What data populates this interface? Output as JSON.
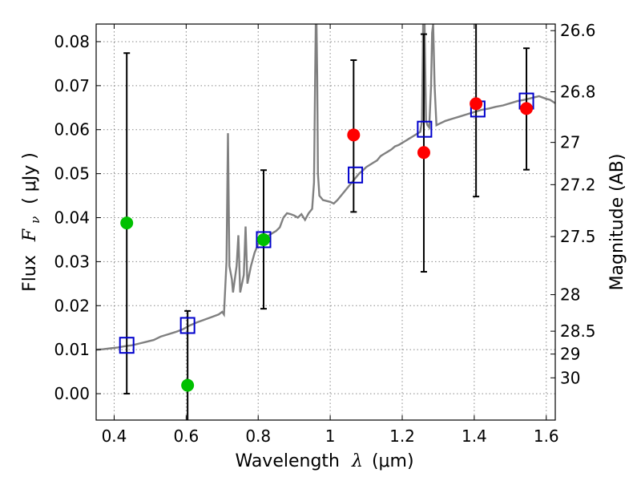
{
  "chart_data": {
    "type": "scatter",
    "xlabel": {
      "prefix": "Wavelength",
      "symbol": "λ",
      "unit": "(μm)"
    },
    "ylabel": {
      "prefix": "Flux",
      "symbol": "F",
      "subscript": "ν",
      "unit": "( μJy )"
    },
    "ylabel_right": "Magnitude (AB)",
    "xlim": [
      0.35,
      1.625
    ],
    "ylim": [
      -0.006,
      0.084
    ],
    "grid": true,
    "x_ticks": [
      0.4,
      0.6,
      0.8,
      1.0,
      1.2,
      1.4,
      1.6
    ],
    "x_tick_labels": [
      "0.4",
      "0.6",
      "0.8",
      "1",
      "1.2",
      "1.4",
      "1.6"
    ],
    "y_ticks": [
      0.0,
      0.01,
      0.02,
      0.03,
      0.04,
      0.05,
      0.06,
      0.07,
      0.08
    ],
    "y_tick_labels": [
      "0.00",
      "0.01",
      "0.02",
      "0.03",
      "0.04",
      "0.05",
      "0.06",
      "0.07",
      "0.08"
    ],
    "right_ticks": [
      {
        "label": "26.6",
        "flux": 0.0825
      },
      {
        "label": "26.8",
        "flux": 0.0686
      },
      {
        "label": "27",
        "flux": 0.0571
      },
      {
        "label": "27.2",
        "flux": 0.0475
      },
      {
        "label": "27.5",
        "flux": 0.0357
      },
      {
        "label": "28",
        "flux": 0.0225
      },
      {
        "label": "28.5",
        "flux": 0.0142
      },
      {
        "label": "29",
        "flux": 0.009
      },
      {
        "label": "30",
        "flux": 0.0036
      }
    ],
    "colors": {
      "template": "#808080",
      "model_box": "#0000cc",
      "measured": "#ff0000",
      "upper_limit": "#00c000",
      "errorbar": "#000000",
      "grid": "#888888"
    },
    "series": [
      {
        "marker": "square",
        "points": [
          {
            "x": 0.435,
            "y": 0.011
          },
          {
            "x": 0.604,
            "y": 0.0155
          },
          {
            "x": 0.815,
            "y": 0.035
          },
          {
            "x": 1.07,
            "y": 0.0497
          },
          {
            "x": 1.262,
            "y": 0.0601
          },
          {
            "x": 1.41,
            "y": 0.0647
          },
          {
            "x": 1.545,
            "y": 0.0665
          }
        ]
      },
      {
        "marker": "circle",
        "points": [
          {
            "x": 1.065,
            "y": 0.0588
          },
          {
            "x": 1.26,
            "y": 0.0548
          },
          {
            "x": 1.405,
            "y": 0.0659
          },
          {
            "x": 1.545,
            "y": 0.0648
          }
        ]
      },
      {
        "marker": "circle",
        "points": [
          {
            "x": 0.435,
            "y": 0.0388
          },
          {
            "x": 0.604,
            "y": 0.0019
          },
          {
            "x": 0.815,
            "y": 0.035
          }
        ]
      }
    ],
    "errorbars": [
      {
        "x": 0.435,
        "low": 0.0,
        "high": 0.0774
      },
      {
        "x": 0.604,
        "low": -0.0065,
        "high": 0.0188
      },
      {
        "x": 0.815,
        "low": 0.0193,
        "high": 0.0508
      },
      {
        "x": 1.065,
        "low": 0.0413,
        "high": 0.0758
      },
      {
        "x": 1.26,
        "low": 0.0277,
        "high": 0.0817
      },
      {
        "x": 1.405,
        "low": 0.0448,
        "high": 0.0872
      },
      {
        "x": 1.545,
        "low": 0.0509,
        "high": 0.0785
      }
    ],
    "template_spectrum": [
      [
        0.35,
        0.01
      ],
      [
        0.37,
        0.0101
      ],
      [
        0.39,
        0.0103
      ],
      [
        0.41,
        0.0105
      ],
      [
        0.43,
        0.0108
      ],
      [
        0.45,
        0.011
      ],
      [
        0.47,
        0.0114
      ],
      [
        0.49,
        0.0118
      ],
      [
        0.51,
        0.0122
      ],
      [
        0.53,
        0.013
      ],
      [
        0.55,
        0.0135
      ],
      [
        0.57,
        0.014
      ],
      [
        0.59,
        0.0146
      ],
      [
        0.61,
        0.0155
      ],
      [
        0.63,
        0.0162
      ],
      [
        0.65,
        0.0168
      ],
      [
        0.67,
        0.0174
      ],
      [
        0.69,
        0.018
      ],
      [
        0.7,
        0.0186
      ],
      [
        0.705,
        0.018
      ],
      [
        0.712,
        0.03
      ],
      [
        0.716,
        0.0592
      ],
      [
        0.72,
        0.029
      ],
      [
        0.727,
        0.026
      ],
      [
        0.73,
        0.023
      ],
      [
        0.74,
        0.029
      ],
      [
        0.745,
        0.036
      ],
      [
        0.75,
        0.023
      ],
      [
        0.76,
        0.027
      ],
      [
        0.765,
        0.038
      ],
      [
        0.77,
        0.025
      ],
      [
        0.78,
        0.029
      ],
      [
        0.79,
        0.032
      ],
      [
        0.8,
        0.034
      ],
      [
        0.81,
        0.035
      ],
      [
        0.82,
        0.0355
      ],
      [
        0.83,
        0.036
      ],
      [
        0.84,
        0.0365
      ],
      [
        0.85,
        0.037
      ],
      [
        0.86,
        0.0378
      ],
      [
        0.87,
        0.04
      ],
      [
        0.88,
        0.041
      ],
      [
        0.89,
        0.0408
      ],
      [
        0.9,
        0.0405
      ],
      [
        0.91,
        0.04
      ],
      [
        0.92,
        0.0408
      ],
      [
        0.93,
        0.0395
      ],
      [
        0.94,
        0.041
      ],
      [
        0.95,
        0.042
      ],
      [
        0.955,
        0.048
      ],
      [
        0.958,
        0.07
      ],
      [
        0.96,
        0.084
      ],
      [
        0.962,
        0.084
      ],
      [
        0.964,
        0.072
      ],
      [
        0.966,
        0.05
      ],
      [
        0.97,
        0.045
      ],
      [
        0.98,
        0.044
      ],
      [
        0.99,
        0.0438
      ],
      [
        1.0,
        0.0436
      ],
      [
        1.01,
        0.0432
      ],
      [
        1.02,
        0.044
      ],
      [
        1.03,
        0.045
      ],
      [
        1.04,
        0.046
      ],
      [
        1.05,
        0.047
      ],
      [
        1.06,
        0.048
      ],
      [
        1.07,
        0.049
      ],
      [
        1.08,
        0.05
      ],
      [
        1.09,
        0.0507
      ],
      [
        1.1,
        0.0515
      ],
      [
        1.11,
        0.052
      ],
      [
        1.12,
        0.0525
      ],
      [
        1.13,
        0.053
      ],
      [
        1.14,
        0.054
      ],
      [
        1.15,
        0.0545
      ],
      [
        1.16,
        0.055
      ],
      [
        1.17,
        0.0555
      ],
      [
        1.18,
        0.0562
      ],
      [
        1.19,
        0.0565
      ],
      [
        1.2,
        0.057
      ],
      [
        1.21,
        0.0575
      ],
      [
        1.22,
        0.058
      ],
      [
        1.23,
        0.0585
      ],
      [
        1.24,
        0.059
      ],
      [
        1.25,
        0.0595
      ],
      [
        1.255,
        0.062
      ],
      [
        1.258,
        0.084
      ],
      [
        1.262,
        0.084
      ],
      [
        1.266,
        0.062
      ],
      [
        1.27,
        0.061
      ],
      [
        1.275,
        0.0605
      ],
      [
        1.28,
        0.07
      ],
      [
        1.283,
        0.082
      ],
      [
        1.286,
        0.084
      ],
      [
        1.29,
        0.07
      ],
      [
        1.295,
        0.061
      ],
      [
        1.3,
        0.0612
      ],
      [
        1.32,
        0.062
      ],
      [
        1.34,
        0.0625
      ],
      [
        1.36,
        0.063
      ],
      [
        1.38,
        0.0635
      ],
      [
        1.4,
        0.064
      ],
      [
        1.42,
        0.0645
      ],
      [
        1.44,
        0.0648
      ],
      [
        1.46,
        0.0652
      ],
      [
        1.48,
        0.0655
      ],
      [
        1.5,
        0.066
      ],
      [
        1.52,
        0.0665
      ],
      [
        1.54,
        0.0668
      ],
      [
        1.56,
        0.0672
      ],
      [
        1.58,
        0.0676
      ],
      [
        1.6,
        0.067
      ],
      [
        1.61,
        0.0668
      ],
      [
        1.625,
        0.066
      ]
    ]
  }
}
